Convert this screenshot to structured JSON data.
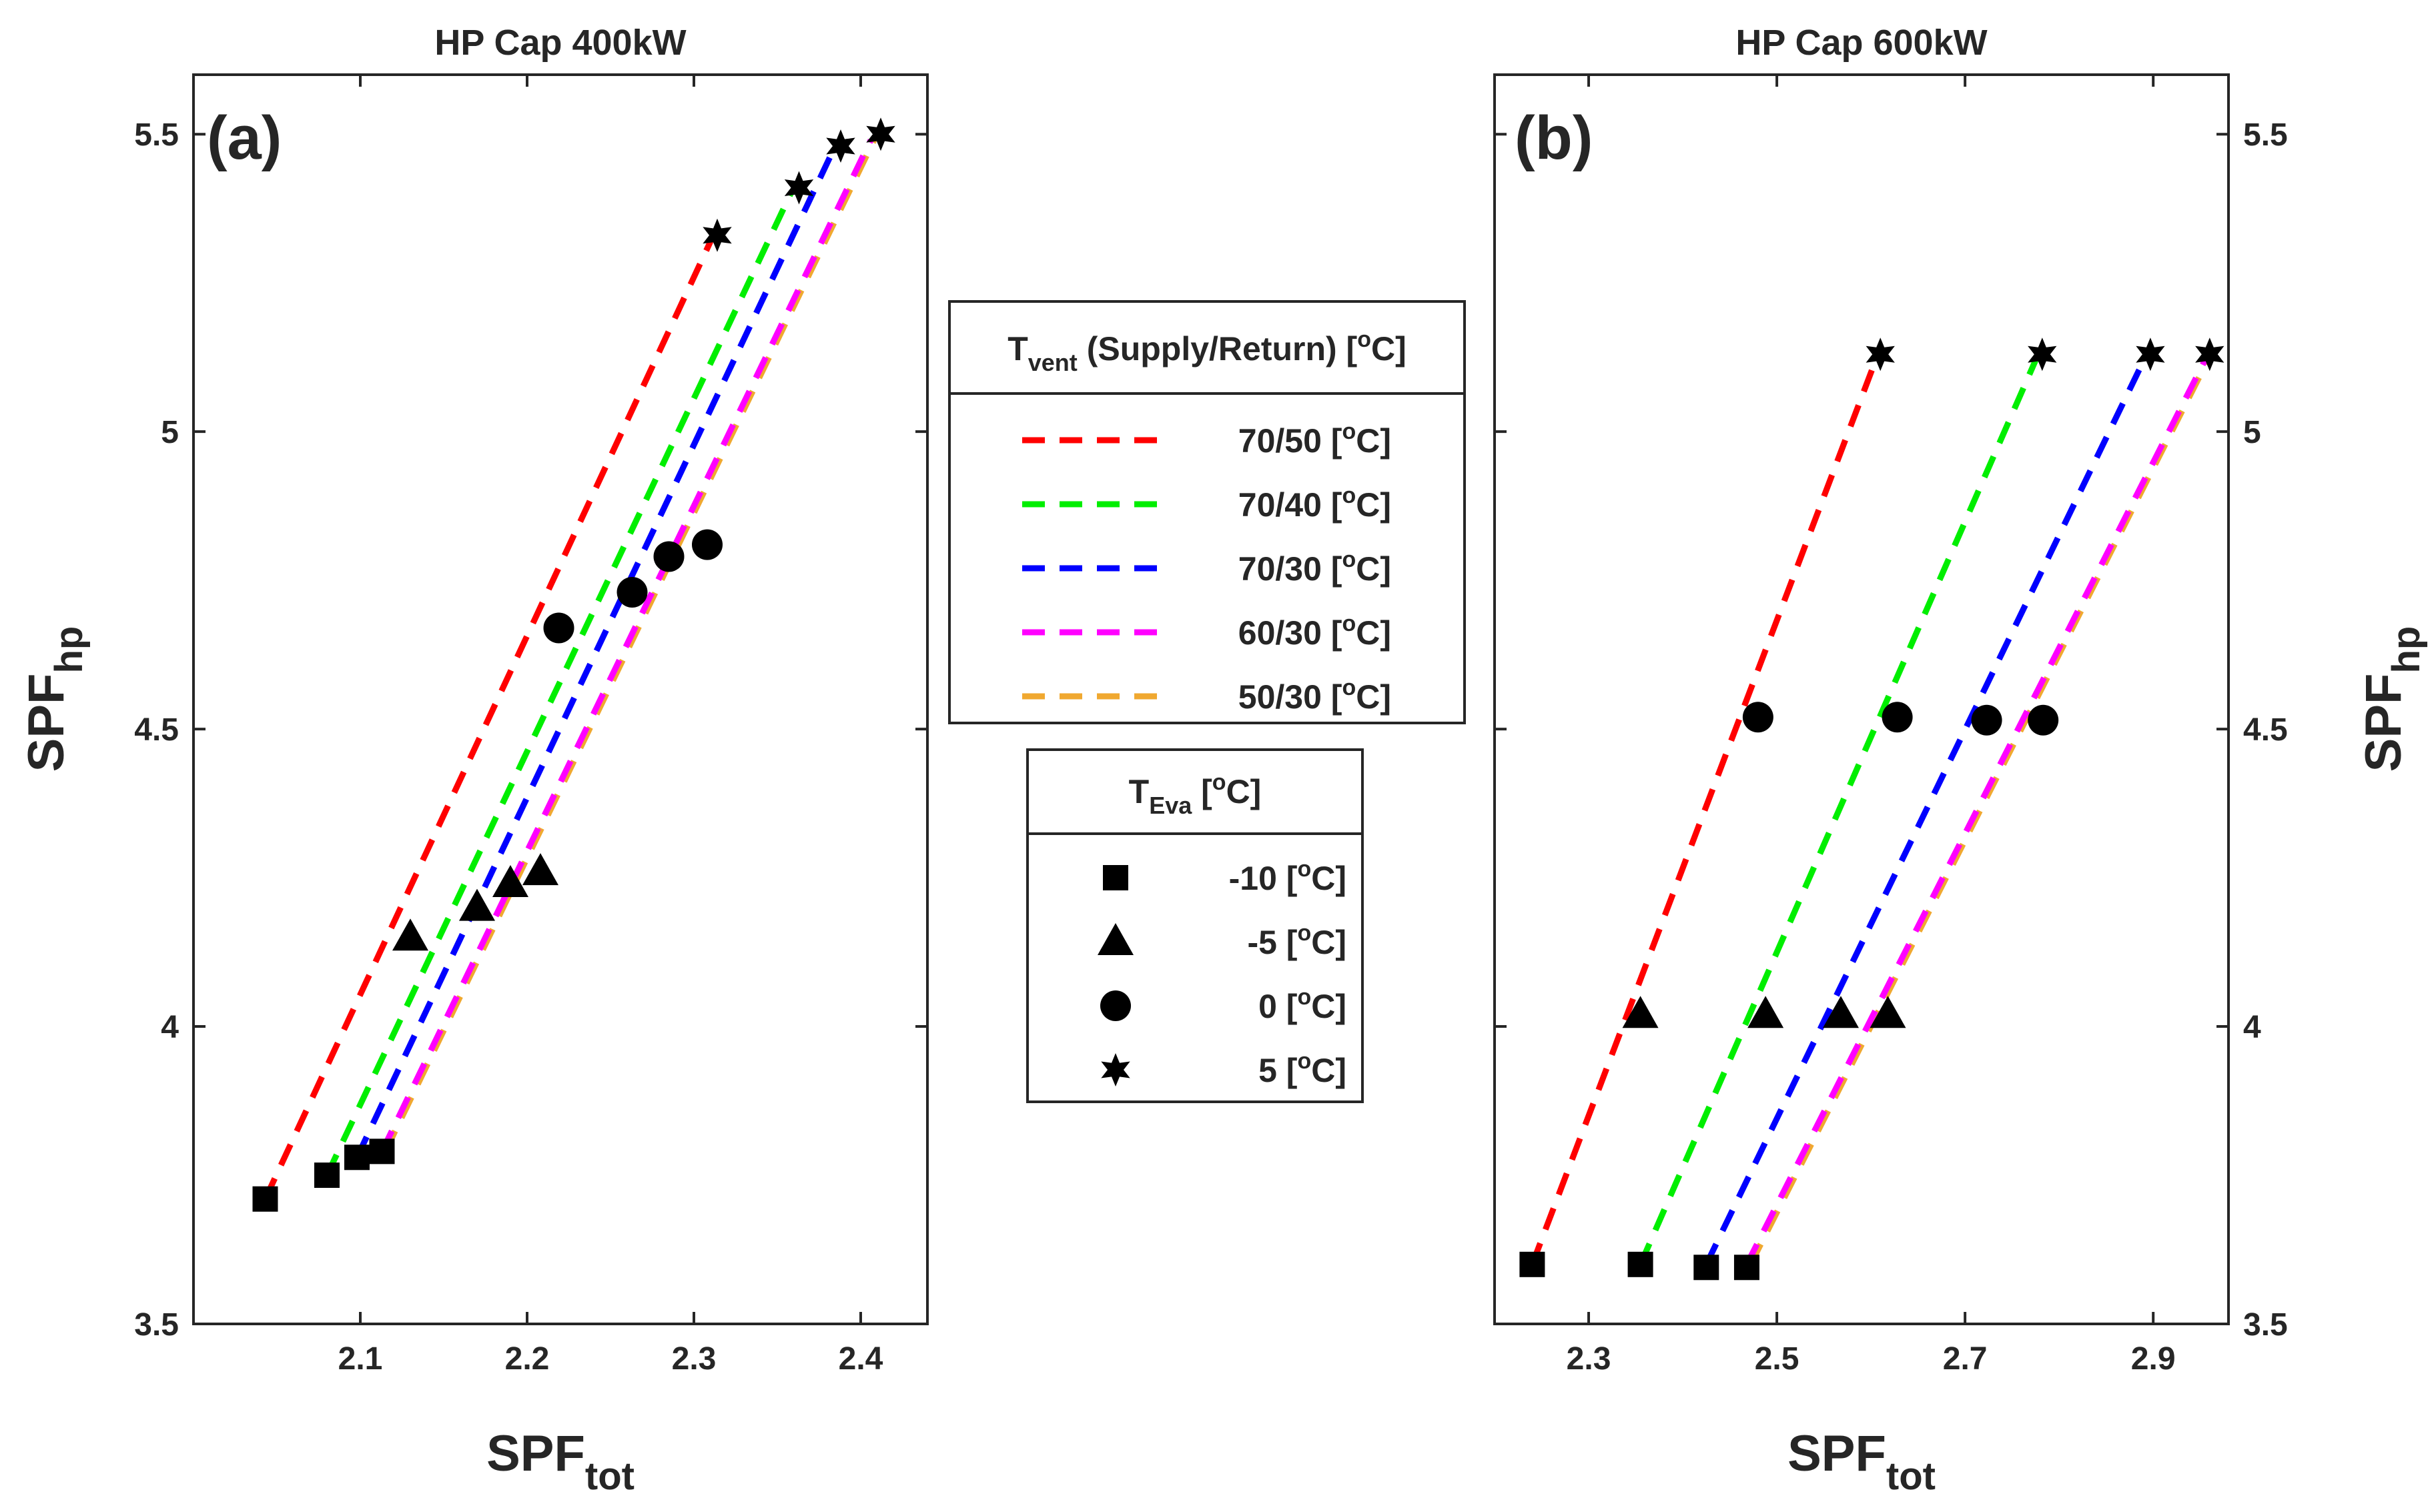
{
  "chart_data": [
    {
      "type": "scatter",
      "panel_label": "(a)",
      "title": "HP Cap 400kW",
      "xlabel_main": "SPF",
      "xlabel_sub": "tot",
      "ylabel_main": "SPF",
      "ylabel_sub": "hp",
      "xlim": [
        2.0,
        2.44
      ],
      "ylim": [
        3.5,
        5.6
      ],
      "xticks": [
        2.1,
        2.2,
        2.3,
        2.4
      ],
      "yticks": [
        3.5,
        4,
        4.5,
        5,
        5.5
      ],
      "ytick_labels": [
        "3.5",
        "4",
        "4.5",
        "5",
        "5.5"
      ],
      "y_axis_side": "left",
      "series": [
        {
          "name": "70/50",
          "color": "#ff0000",
          "line_x": [
            2.043,
            2.31
          ],
          "line_y": [
            3.71,
            5.32
          ],
          "points": {
            "x": [
              2.043,
              2.13,
              2.219,
              2.314
            ],
            "y": [
              3.71,
              4.15,
              4.67,
              5.33
            ]
          }
        },
        {
          "name": "70/40",
          "color": "#00ee00",
          "line_x": [
            2.08,
            2.358
          ],
          "line_y": [
            3.75,
            5.4
          ],
          "points": {
            "x": [
              2.08,
              2.17,
              2.263,
              2.363
            ],
            "y": [
              3.75,
              4.2,
              4.73,
              5.41
            ]
          }
        },
        {
          "name": "70/30",
          "color": "#0000ff",
          "line_x": [
            2.098,
            2.383
          ],
          "line_y": [
            3.78,
            5.47
          ],
          "points": {
            "x": [
              2.098,
              2.19,
              2.285,
              2.388
            ],
            "y": [
              3.78,
              4.24,
              4.79,
              5.48
            ]
          }
        },
        {
          "name": "60/30",
          "color": "#ff00ff",
          "line_x": [
            2.113,
            2.406
          ],
          "line_y": [
            3.79,
            5.49
          ],
          "points": {
            "x": [
              2.113,
              2.208,
              2.308,
              2.412
            ],
            "y": [
              3.79,
              4.26,
              4.81,
              5.5
            ]
          }
        },
        {
          "name": "50/30",
          "color": "#f0a830",
          "line_x": [
            2.115,
            2.408
          ],
          "line_y": [
            3.79,
            5.49
          ],
          "points": {
            "x": [],
            "y": []
          }
        }
      ]
    },
    {
      "type": "scatter",
      "panel_label": "(b)",
      "title": "HP Cap 600kW",
      "xlabel_main": "SPF",
      "xlabel_sub": "tot",
      "ylabel_main": "SPF",
      "ylabel_sub": "hp",
      "xlim": [
        2.2,
        2.98
      ],
      "ylim": [
        3.5,
        5.6
      ],
      "xticks": [
        2.3,
        2.5,
        2.7,
        2.9
      ],
      "yticks": [
        3.5,
        4,
        4.5,
        5,
        5.5
      ],
      "ytick_labels": [
        "3.5",
        "4",
        "4.5",
        "5",
        "5.5"
      ],
      "y_axis_side": "right",
      "series": [
        {
          "name": "70/50",
          "color": "#ff0000",
          "line_x": [
            2.24,
            2.605
          ],
          "line_y": [
            3.6,
            5.12
          ],
          "points": {
            "x": [
              2.24,
              2.355,
              2.48,
              2.61
            ],
            "y": [
              3.6,
              4.02,
              4.52,
              5.13
            ]
          }
        },
        {
          "name": "70/40",
          "color": "#00ee00",
          "line_x": [
            2.355,
            2.775
          ],
          "line_y": [
            3.6,
            5.12
          ],
          "points": {
            "x": [
              2.355,
              2.488,
              2.628,
              2.782
            ],
            "y": [
              3.6,
              4.02,
              4.52,
              5.13
            ]
          }
        },
        {
          "name": "70/30",
          "color": "#0000ff",
          "line_x": [
            2.425,
            2.89
          ],
          "line_y": [
            3.6,
            5.12
          ],
          "points": {
            "x": [
              2.425,
              2.568,
              2.723,
              2.897
            ],
            "y": [
              3.595,
              4.02,
              4.515,
              5.13
            ]
          }
        },
        {
          "name": "60/30",
          "color": "#ff00ff",
          "line_x": [
            2.468,
            2.955
          ],
          "line_y": [
            3.6,
            5.12
          ],
          "points": {
            "x": [
              2.468,
              2.618,
              2.783,
              2.96
            ],
            "y": [
              3.595,
              4.02,
              4.515,
              5.13
            ]
          }
        },
        {
          "name": "50/30",
          "color": "#f0a830",
          "line_x": [
            2.472,
            2.958
          ],
          "line_y": [
            3.6,
            5.12
          ],
          "points": {
            "x": [],
            "y": []
          }
        }
      ]
    }
  ],
  "legend_vent": {
    "title_main": "T",
    "title_sub": "vent",
    "title_rest": " (Supply/Return) [",
    "title_sup": "o",
    "title_end": "C]",
    "entries": [
      {
        "label": "70/50 [",
        "color": "#ff0000"
      },
      {
        "label": "70/40 [",
        "color": "#00ee00"
      },
      {
        "label": "70/30 [",
        "color": "#0000ff"
      },
      {
        "label": "60/30 [",
        "color": "#ff00ff"
      },
      {
        "label": "50/30 [",
        "color": "#f0a830"
      }
    ],
    "unit_sup": "o",
    "unit_end": "C]"
  },
  "legend_eva": {
    "title_main": "T",
    "title_sub": "Eva",
    "title_rest": " [",
    "title_sup": "o",
    "title_end": "C]",
    "entries": [
      {
        "label": "-10 [",
        "marker": "square"
      },
      {
        "label": "-5 [",
        "marker": "triangle"
      },
      {
        "label": "0 [",
        "marker": "circle"
      },
      {
        "label": "5 [",
        "marker": "star"
      }
    ],
    "unit_sup": "o",
    "unit_end": "C]"
  }
}
